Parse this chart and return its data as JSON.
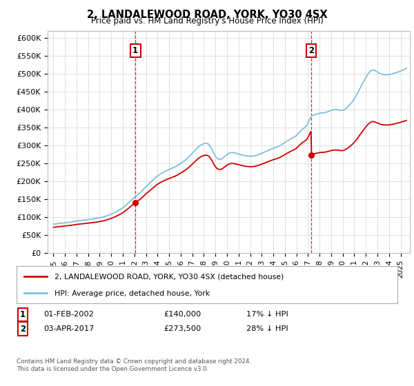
{
  "title": "2, LANDALEWOOD ROAD, YORK, YO30 4SX",
  "subtitle": "Price paid vs. HM Land Registry's House Price Index (HPI)",
  "hpi_color": "#7fbfdf",
  "price_color": "#cc0000",
  "vline_color": "#cc0000",
  "transaction1_date": 2002.08,
  "transaction1_price": 140000,
  "transaction1_label": "1",
  "transaction2_date": 2017.27,
  "transaction2_price": 273500,
  "transaction2_label": "2",
  "yticks": [
    0,
    50000,
    100000,
    150000,
    200000,
    250000,
    300000,
    350000,
    400000,
    450000,
    500000,
    550000,
    600000
  ],
  "ytick_labels": [
    "£0",
    "£50K",
    "£100K",
    "£150K",
    "£200K",
    "£250K",
    "£300K",
    "£350K",
    "£400K",
    "£450K",
    "£500K",
    "£550K",
    "£600K"
  ],
  "ylim_min": 0,
  "ylim_max": 620000,
  "xlim_min": 1994.5,
  "xlim_max": 2025.8,
  "legend_entry1": "2, LANDALEWOOD ROAD, YORK, YO30 4SX (detached house)",
  "legend_entry2": "HPI: Average price, detached house, York",
  "note1_label": "1",
  "note1_date": "01-FEB-2002",
  "note1_price": "£140,000",
  "note1_hpi": "17% ↓ HPI",
  "note2_label": "2",
  "note2_date": "03-APR-2017",
  "note2_price": "£273,500",
  "note2_hpi": "28% ↓ HPI",
  "footer1": "Contains HM Land Registry data © Crown copyright and database right 2024.",
  "footer2": "This data is licensed under the Open Government Licence v3.0.",
  "background_color": "#ffffff",
  "grid_color": "#e0e0e0"
}
